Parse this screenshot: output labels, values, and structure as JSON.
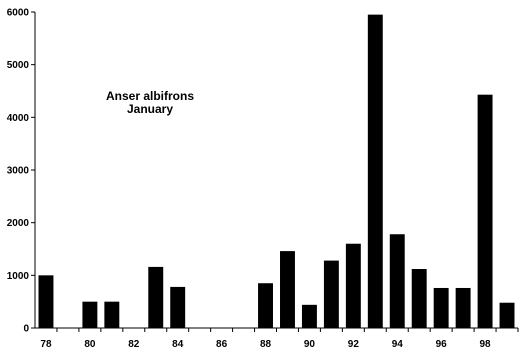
{
  "chart_data": {
    "type": "bar",
    "title": "",
    "xlabel": "",
    "ylabel": "",
    "annotation": [
      "Anser albifrons",
      "January"
    ],
    "categories": [
      "78",
      "79",
      "80",
      "81",
      "82",
      "83",
      "84",
      "85",
      "86",
      "87",
      "88",
      "89",
      "90",
      "91",
      "92",
      "93",
      "94",
      "95",
      "96",
      "97",
      "98",
      "99"
    ],
    "x_tick_labels": [
      "78",
      "80",
      "82",
      "84",
      "86",
      "88",
      "90",
      "92",
      "94",
      "96",
      "98"
    ],
    "values": [
      1000,
      0,
      500,
      500,
      0,
      1160,
      780,
      0,
      0,
      0,
      850,
      1460,
      440,
      1280,
      1600,
      5950,
      1780,
      1120,
      760,
      760,
      4430,
      480
    ],
    "ylim": [
      0,
      6000
    ],
    "y_ticks": [
      0,
      1000,
      2000,
      3000,
      4000,
      5000,
      6000
    ],
    "bar_color": "#000000",
    "grid": false,
    "legend": "none"
  }
}
